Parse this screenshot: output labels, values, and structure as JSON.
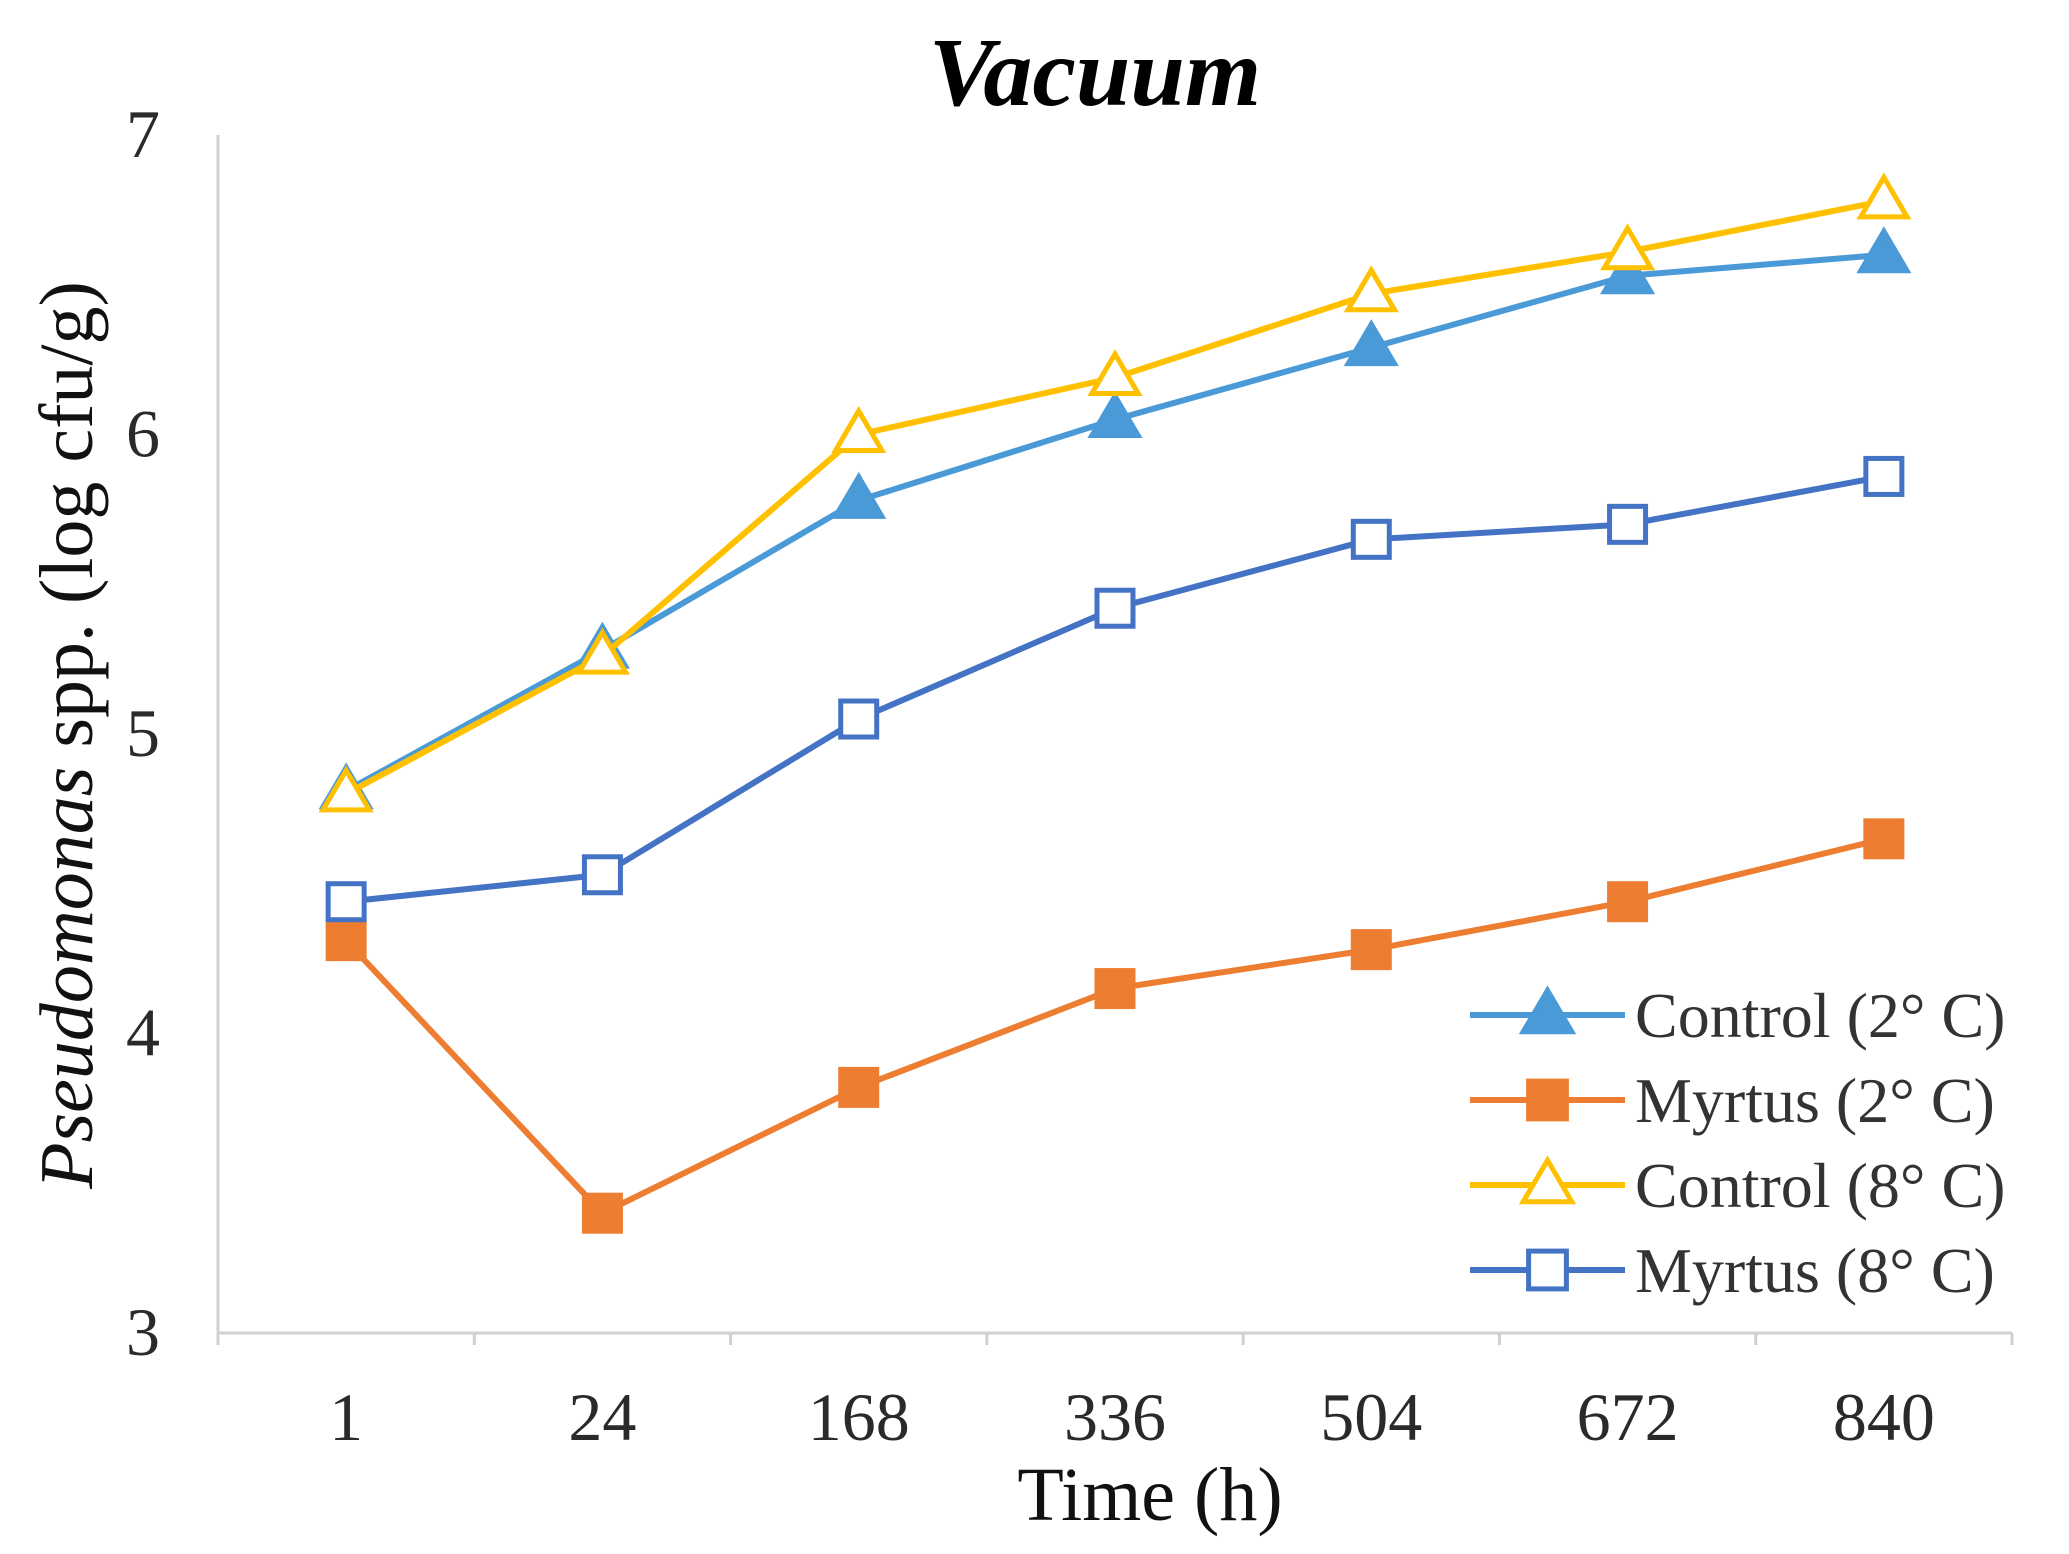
{
  "chart_data": {
    "type": "line",
    "title": "Vacuum",
    "xlabel": "Time (h)",
    "ylabel_italic": "Pseudomonas",
    "ylabel_rest": " spp. (log cfu/g)",
    "categories": [
      "1",
      "24",
      "168",
      "336",
      "504",
      "672",
      "840"
    ],
    "ylim": [
      3,
      7
    ],
    "yticks": [
      3,
      4,
      5,
      6,
      7
    ],
    "legend_position": "bottom-right",
    "grid": false,
    "series": [
      {
        "name": "Control (2° C)",
        "color": "#4a9ad8",
        "marker": "triangle",
        "filled": true,
        "values": [
          4.81,
          5.28,
          5.78,
          6.05,
          6.29,
          6.53,
          6.6
        ]
      },
      {
        "name": "Myrtus (2° C)",
        "color": "#ed7d31",
        "marker": "square",
        "filled": true,
        "values": [
          4.31,
          3.4,
          3.82,
          4.15,
          4.28,
          4.44,
          4.65
        ]
      },
      {
        "name": "Control (8° C)",
        "color": "#ffc000",
        "marker": "triangle",
        "filled": false,
        "values": [
          4.8,
          5.26,
          6.0,
          6.19,
          6.47,
          6.61,
          6.78
        ]
      },
      {
        "name": "Myrtus (8° C)",
        "color": "#4472c4",
        "marker": "square",
        "filled": false,
        "values": [
          4.44,
          4.53,
          5.05,
          5.42,
          5.65,
          5.7,
          5.86
        ]
      }
    ]
  }
}
